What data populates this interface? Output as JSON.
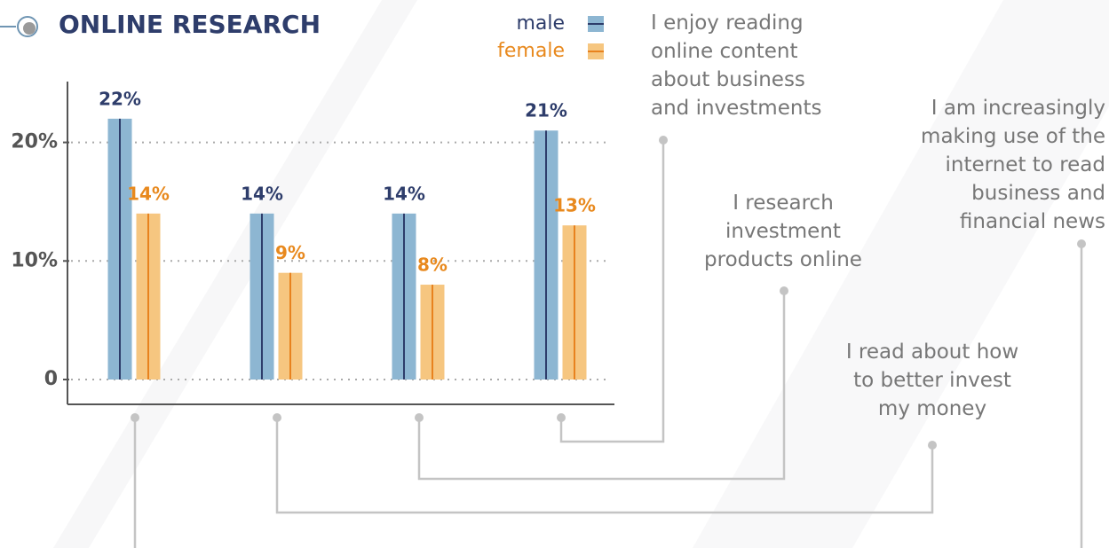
{
  "chart_data": {
    "type": "bar",
    "title": "ONLINE RESEARCH",
    "categories": [
      "I am increasingly\nmaking use of the\ninternet to read\nbusiness and\nfinancial news",
      "I read about how\nto better invest\nmy money",
      "I research\ninvestment\nproducts online",
      "I enjoy reading\nonline content\nabout business\nand investments"
    ],
    "series": [
      {
        "name": "male",
        "color": "#8db6d2",
        "line_color": "#2e3d6b",
        "label_color": "#2e3d6b",
        "values": [
          22,
          14,
          14,
          21
        ],
        "value_labels": [
          "22%",
          "14%",
          "14%",
          "21%"
        ]
      },
      {
        "name": "female",
        "color": "#f6c680",
        "line_color": "#e8821e",
        "label_color": "#e8891e",
        "values": [
          14,
          9,
          8,
          13
        ],
        "value_labels": [
          "14%",
          "9%",
          "8%",
          "13%"
        ]
      }
    ],
    "ylim": [
      0,
      25
    ],
    "yticks": [
      0,
      {
        "value": 10,
        "label": "10%"
      },
      {
        "value": 20,
        "label": "20%"
      }
    ],
    "grid": true
  }
}
